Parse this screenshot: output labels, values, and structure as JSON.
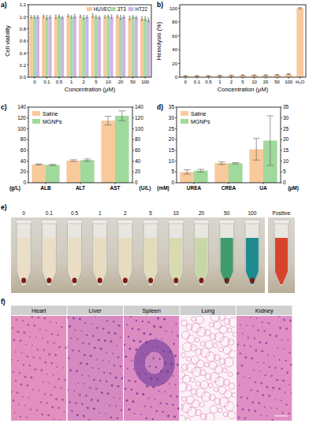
{
  "chart_data": [
    {
      "panel": "a)",
      "type": "bar",
      "categories": [
        "0",
        "0.1",
        "0.5",
        "1",
        "2",
        "5",
        "10",
        "20",
        "50",
        "100"
      ],
      "xlabel": "Concentration (μM)",
      "ylabel": "Cell viability",
      "ylim": [
        0,
        1.2
      ],
      "yticks": [
        {
          "value": 0,
          "label": "0.0"
        },
        0.2,
        0.4,
        0.6,
        0.8,
        {
          "value": 1,
          "label": "1.0"
        },
        1.2
      ],
      "legend": "upper right",
      "series": [
        {
          "name": "HUVEC",
          "color": "#f8c99b",
          "values": [
            1.0,
            1.01,
            1.0,
            1.02,
            1.01,
            1.02,
            1.0,
            1.01,
            0.98,
            0.97
          ],
          "errors": [
            0.02,
            0.02,
            0.03,
            0.02,
            0.02,
            0.03,
            0.02,
            0.02,
            0.03,
            0.03
          ]
        },
        {
          "name": "3T3",
          "color": "#a6dc9f",
          "values": [
            1.0,
            0.99,
            1.01,
            1.0,
            0.99,
            1.0,
            1.01,
            0.99,
            1.0,
            0.97
          ],
          "errors": [
            0.02,
            0.03,
            0.02,
            0.02,
            0.03,
            0.02,
            0.02,
            0.03,
            0.02,
            0.03
          ]
        },
        {
          "name": "HT22",
          "color": "#cdb4ea",
          "values": [
            1.0,
            1.0,
            0.99,
            1.01,
            1.0,
            0.99,
            1.0,
            1.0,
            0.99,
            0.95
          ],
          "errors": [
            0.02,
            0.02,
            0.02,
            0.03,
            0.02,
            0.02,
            0.03,
            0.02,
            0.02,
            0.03
          ]
        }
      ]
    },
    {
      "panel": "b)",
      "type": "bar",
      "categories": [
        "0",
        "0.1",
        "0.5",
        "1",
        "2",
        "5",
        "10",
        "20",
        "50",
        "100",
        "H₂O"
      ],
      "xlabel": "Concentration (μM)",
      "ylabel": "Hemolysis (%)",
      "ylim": [
        0,
        105
      ],
      "yticks": [
        0,
        20,
        40,
        60,
        80,
        100
      ],
      "color": "#f8c99b",
      "values": [
        2,
        2,
        2,
        2.5,
        2.5,
        3,
        3,
        3,
        3.5,
        4.5,
        100
      ],
      "errors": [
        0.3,
        0.3,
        0.3,
        0.4,
        0.4,
        0.4,
        0.4,
        0.5,
        0.5,
        0.6,
        0.8
      ]
    },
    {
      "panel": "c)",
      "type": "bar",
      "categories": [
        "ALB",
        "ALT",
        "AST"
      ],
      "y_unit": "(g/L)",
      "y2_unit": "(U/L)",
      "ylim": [
        0,
        140
      ],
      "yticks": [
        0,
        20,
        40,
        60,
        80,
        100,
        120,
        140
      ],
      "y2lim": [
        0,
        140
      ],
      "y2ticks": [
        0,
        20,
        40,
        60,
        80,
        100,
        120,
        140
      ],
      "legend": "upper left",
      "series": [
        {
          "name": "Saline",
          "color": "#f8c99b",
          "values": [
            34,
            41,
            115
          ],
          "errors": [
            1,
            1.5,
            8
          ]
        },
        {
          "name": "MGNPs",
          "color": "#9fd99b",
          "values": [
            33,
            42,
            124
          ],
          "errors": [
            1,
            2,
            9
          ]
        }
      ]
    },
    {
      "panel": "d)",
      "type": "bar",
      "categories": [
        "UREA",
        "CREA",
        "UA"
      ],
      "y_unit": "(mM)",
      "y2_unit": "(μM)",
      "ylim": [
        0,
        35
      ],
      "yticks": [
        0,
        5,
        10,
        15,
        20,
        25,
        30,
        35
      ],
      "y2lim": [
        0,
        35
      ],
      "y2ticks": [
        0,
        5,
        10,
        15,
        20,
        25,
        30,
        35
      ],
      "legend": "upper left",
      "series": [
        {
          "name": "Saline",
          "color": "#f8c99b",
          "values": [
            5,
            9.1,
            15.5
          ],
          "errors": [
            1,
            0.6,
            5
          ]
        },
        {
          "name": "MGNPs",
          "color": "#9fd99b",
          "values": [
            5.6,
            9.0,
            19.5
          ],
          "errors": [
            0.6,
            0.3,
            11.5
          ]
        }
      ]
    }
  ],
  "panel_e": {
    "panel": "e)",
    "tubes": [
      {
        "label": "0",
        "color": "#eadfc6"
      },
      {
        "label": "0.1",
        "color": "#eadfc6"
      },
      {
        "label": "0.5",
        "color": "#e9dec4"
      },
      {
        "label": "1",
        "color": "#e8dcc0"
      },
      {
        "label": "2",
        "color": "#e6dbbc"
      },
      {
        "label": "5",
        "color": "#e2dcb8"
      },
      {
        "label": "10",
        "color": "#d8dab0"
      },
      {
        "label": "20",
        "color": "#c9d6a6"
      },
      {
        "label": "50",
        "color": "#3f9c6c"
      },
      {
        "label": "100",
        "color": "#1f8b8e"
      }
    ],
    "control": {
      "label": "Positive",
      "color": "#d6442c"
    }
  },
  "panel_f": {
    "panel": "f)",
    "organs": [
      "Heart",
      "Liver",
      "Spleen",
      "Lung",
      "Kidney"
    ]
  }
}
